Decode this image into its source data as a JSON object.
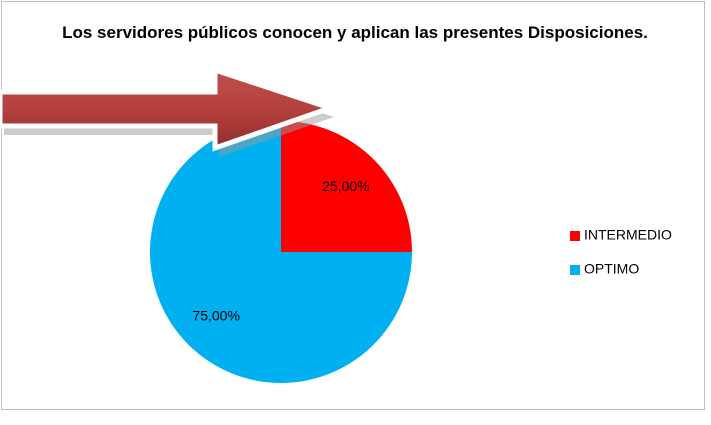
{
  "chart_data": {
    "type": "pie",
    "title": "Los servidores públicos conocen y aplican las presentes Disposiciones.",
    "categories": [
      "INTERMEDIO",
      "OPTIMO"
    ],
    "values": [
      25,
      75
    ],
    "value_labels": [
      "25,00%",
      "75,00%"
    ],
    "colors": [
      "#ff0000",
      "#00b0f0"
    ],
    "legend": "right"
  }
}
